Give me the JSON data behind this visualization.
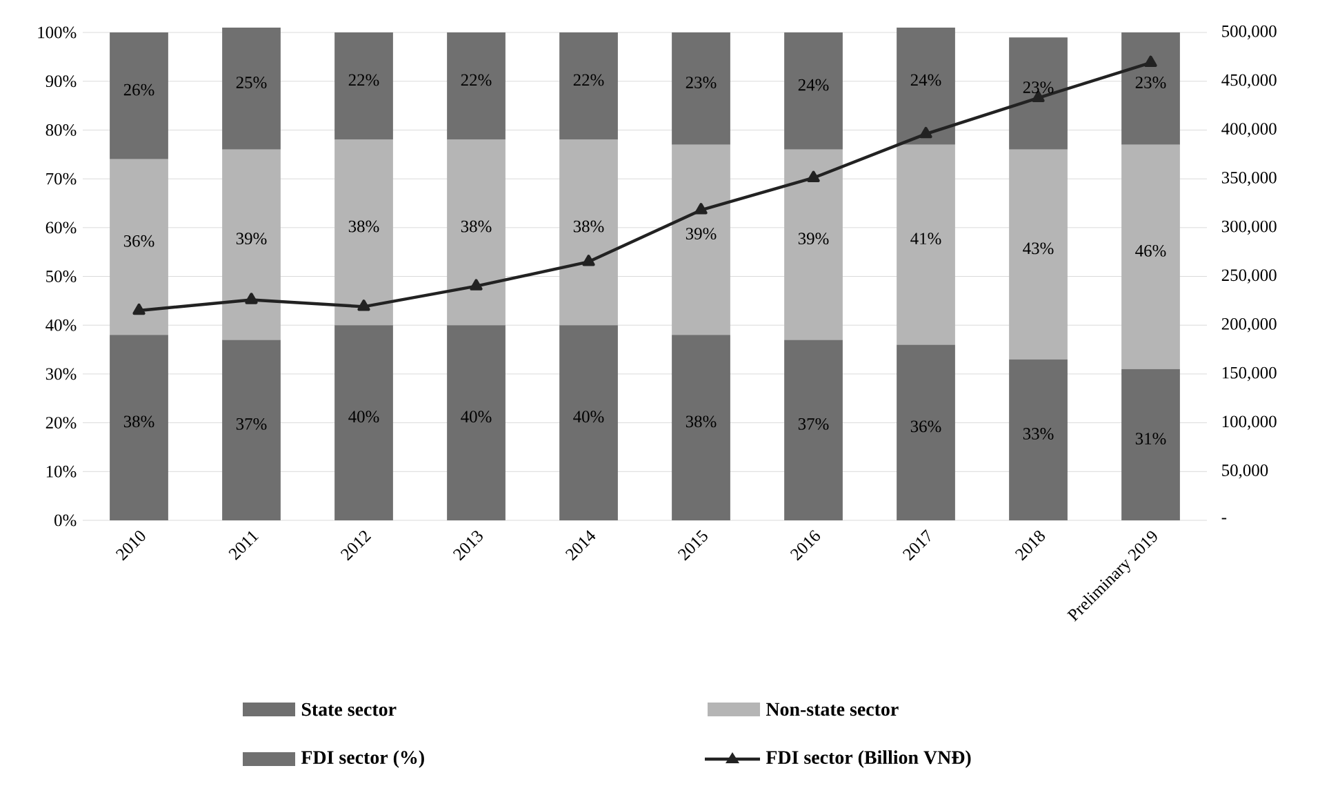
{
  "chart_data": {
    "type": "bar",
    "stacked": true,
    "grid": "y",
    "legend": "bottom",
    "categories": [
      "2010",
      "2011",
      "2012",
      "2013",
      "2014",
      "2015",
      "2016",
      "2017",
      "2018",
      "Preliminary 2019"
    ],
    "series": [
      {
        "name": "State sector",
        "color": "#6f6f6f",
        "values": [
          38,
          37,
          40,
          40,
          40,
          38,
          37,
          36,
          33,
          31
        ],
        "value_labels": [
          "38%",
          "37%",
          "40%",
          "40%",
          "40%",
          "38%",
          "37%",
          "36%",
          "33%",
          "31%"
        ]
      },
      {
        "name": "Non-state sector",
        "color": "#b5b5b5",
        "values": [
          36,
          39,
          38,
          38,
          38,
          39,
          39,
          41,
          43,
          46
        ],
        "value_labels": [
          "36%",
          "39%",
          "38%",
          "38%",
          "38%",
          "39%",
          "39%",
          "41%",
          "43%",
          "46%"
        ]
      },
      {
        "name": "FDI sector (%)",
        "color": "#707070",
        "values": [
          26,
          25,
          22,
          22,
          22,
          23,
          24,
          24,
          23,
          23
        ],
        "value_labels": [
          "26%",
          "25%",
          "22%",
          "22%",
          "22%",
          "23%",
          "24%",
          "24%",
          "23%",
          "23%"
        ]
      },
      {
        "name": "FDI sector (Billion VNĐ)",
        "type": "line",
        "axis": "y2",
        "marker": "triangle",
        "color": "#222222",
        "values": [
          215000,
          226000,
          219000,
          240000,
          265000,
          318000,
          351000,
          396000,
          433000,
          469000
        ]
      }
    ],
    "ylim": [
      0,
      101
    ],
    "yticks": [
      {
        "value": 0,
        "label": "0%"
      },
      {
        "value": 10,
        "label": "10%"
      },
      {
        "value": 20,
        "label": "20%"
      },
      {
        "value": 30,
        "label": "30%"
      },
      {
        "value": 40,
        "label": "40%"
      },
      {
        "value": 50,
        "label": "50%"
      },
      {
        "value": 60,
        "label": "60%"
      },
      {
        "value": 70,
        "label": "70%"
      },
      {
        "value": 80,
        "label": "80%"
      },
      {
        "value": 90,
        "label": "90%"
      },
      {
        "value": 100,
        "label": "100%"
      }
    ],
    "y2lim": [
      0,
      505000
    ],
    "y2ticks": [
      {
        "value": 0,
        "label": "-"
      },
      {
        "value": 50000,
        "label": "50,000"
      },
      {
        "value": 100000,
        "label": "100,000"
      },
      {
        "value": 150000,
        "label": "150,000"
      },
      {
        "value": 200000,
        "label": "200,000"
      },
      {
        "value": 250000,
        "label": "250,000"
      },
      {
        "value": 300000,
        "label": "300,000"
      },
      {
        "value": 350000,
        "label": "350,000"
      },
      {
        "value": 400000,
        "label": "400,000"
      },
      {
        "value": 450000,
        "label": "450,000"
      },
      {
        "value": 500000,
        "label": "500,000"
      }
    ]
  }
}
